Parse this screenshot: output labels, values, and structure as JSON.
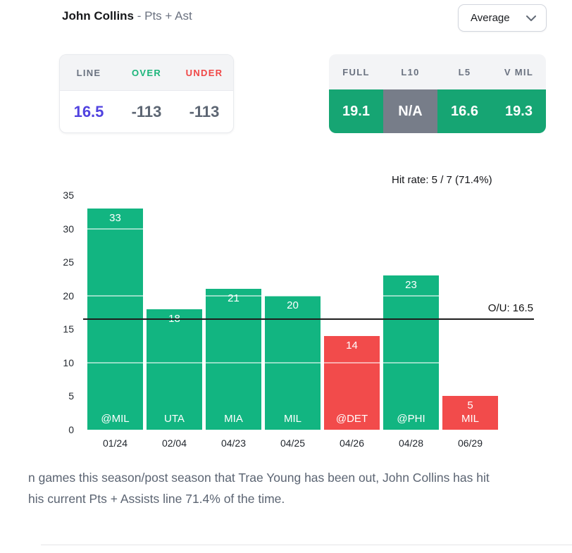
{
  "header": {
    "player": "John Collins",
    "stat_suffix": "- Pts + Ast",
    "dropdown_value": "Average"
  },
  "line_card": {
    "columns": [
      {
        "label": "LINE",
        "value": "16.5",
        "label_color": "#6A7280",
        "value_color": "#5143E0"
      },
      {
        "label": "OVER",
        "value": "-113",
        "label_color": "#1CB57B",
        "value_color": "#5D6673"
      },
      {
        "label": "UNDER",
        "value": "-113",
        "label_color": "#F04747",
        "value_color": "#5D6673"
      }
    ]
  },
  "splits_card": {
    "columns": [
      {
        "label": "FULL",
        "value": "19.1",
        "bg": "#16A573"
      },
      {
        "label": "L10",
        "value": "N/A",
        "bg": "#777D89"
      },
      {
        "label": "L5",
        "value": "16.6",
        "bg": "#16A573"
      },
      {
        "label": "V MIL",
        "value": "19.3",
        "bg": "#16A573"
      }
    ]
  },
  "chart_data": {
    "type": "bar",
    "categories": [
      "01/24",
      "02/04",
      "04/23",
      "04/25",
      "04/26",
      "04/28",
      "06/29"
    ],
    "opponents": [
      "@MIL",
      "UTA",
      "MIA",
      "MIL",
      "@DET",
      "@PHI",
      "MIL"
    ],
    "values": [
      33,
      18,
      21,
      20,
      14,
      23,
      5
    ],
    "bar_results": [
      "over",
      "over",
      "over",
      "over",
      "under",
      "over",
      "under"
    ],
    "colors": {
      "over": "#12B581",
      "under": "#F24B4B"
    },
    "ylim": [
      0,
      35
    ],
    "y_ticks": [
      0,
      5,
      10,
      15,
      20,
      25,
      30,
      35
    ],
    "gridlines": [
      10,
      20,
      30
    ],
    "reference_line": {
      "value": 16.5,
      "label": "O/U: 16.5"
    },
    "hit_rate": {
      "hits": 5,
      "games": 7,
      "pct": 71.4,
      "label": "Hit rate: 5 / 7 (71.4%)"
    },
    "legend": "none",
    "xlabel": "",
    "ylabel": ""
  },
  "footer": {
    "note_line1": "n games this season/post season that Trae Young has been out, John Collins has hit",
    "note_line2": "his current Pts + Assists line 71.4% of the time."
  }
}
